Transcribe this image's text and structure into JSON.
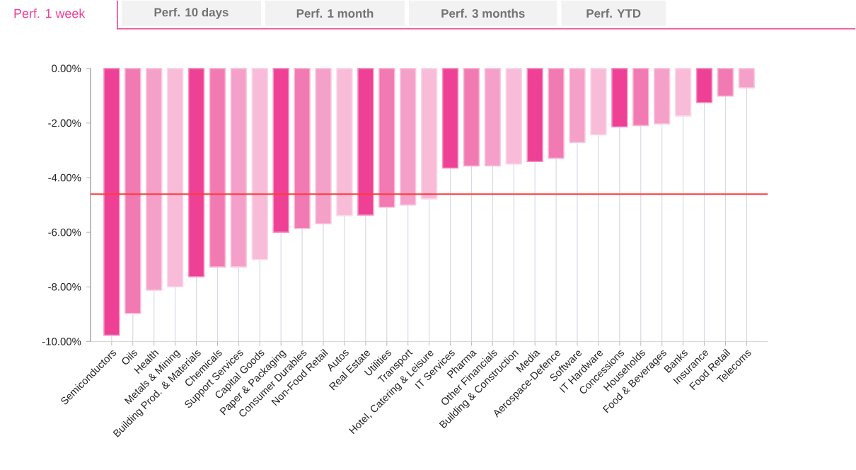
{
  "chart_data": {
    "type": "bar",
    "title": "Perf. 1 week",
    "annotations": [
      "Perf. 10 days",
      "Perf. 1 month",
      "Perf. 3 months",
      "Perf. YTD"
    ],
    "categories": [
      "Semiconductors",
      "Oils",
      "Health",
      "Metals & Mining",
      "Building Prod. & Materials",
      "Chemicals",
      "Support Services",
      "Capital Goods",
      "Paper & Packaging",
      "Consumer Durables",
      "Non-Food Retail",
      "Autos",
      "Real Estate",
      "Utilities",
      "Transport",
      "Hotel, Catering & Leisure",
      "IT Services",
      "Pharma",
      "Other Financials",
      "Building & Construction",
      "Media",
      "Aerospace-Defence",
      "Software",
      "IT Hardware",
      "Concessions",
      "Households",
      "Food & Beverages",
      "Banks",
      "Insurance",
      "Food Retail",
      "Telecoms"
    ],
    "values": [
      -9.77,
      -8.97,
      -8.12,
      -8.0,
      -7.63,
      -7.27,
      -7.27,
      -7.0,
      -6.0,
      -5.86,
      -5.69,
      -5.39,
      -5.37,
      -5.08,
      -5.0,
      -4.78,
      -3.65,
      -3.57,
      -3.57,
      -3.5,
      -3.41,
      -3.29,
      -2.71,
      -2.43,
      -2.14,
      -2.09,
      -2.03,
      -1.74,
      -1.25,
      -1.01,
      -0.71
    ],
    "colors": [
      "#ee4196",
      "#f27ab3",
      "#f5a0c8",
      "#f8bbd8",
      "#ee4196",
      "#f27ab3",
      "#f5a0c8",
      "#f8bbd8",
      "#ee4196",
      "#f27ab3",
      "#f5a0c8",
      "#f8bbd8",
      "#ee4196",
      "#f27ab3",
      "#f5a0c8",
      "#f8bbd8",
      "#ee4196",
      "#f27ab3",
      "#f5a0c8",
      "#f8bbd8",
      "#ee4196",
      "#f27ab3",
      "#f5a0c8",
      "#f8bbd8",
      "#ee4196",
      "#f27ab3",
      "#f5a0c8",
      "#f8bbd8",
      "#ee4196",
      "#f27ab3",
      "#f5a0c8"
    ],
    "ylim": [
      -10,
      0
    ],
    "yticks": [
      {
        "value": -10,
        "label": "-10.00%"
      },
      {
        "value": -8,
        "label": "-8.00%"
      },
      {
        "value": -6,
        "label": "-6.00%"
      },
      {
        "value": -4,
        "label": "-4.00%"
      },
      {
        "value": -2,
        "label": "-2.00%"
      },
      {
        "value": 0,
        "label": "0.00%"
      }
    ],
    "ref_lines": [
      {
        "axis": "y",
        "value": -4.6,
        "color": "#ff3b3b"
      }
    ],
    "grid": "x"
  }
}
